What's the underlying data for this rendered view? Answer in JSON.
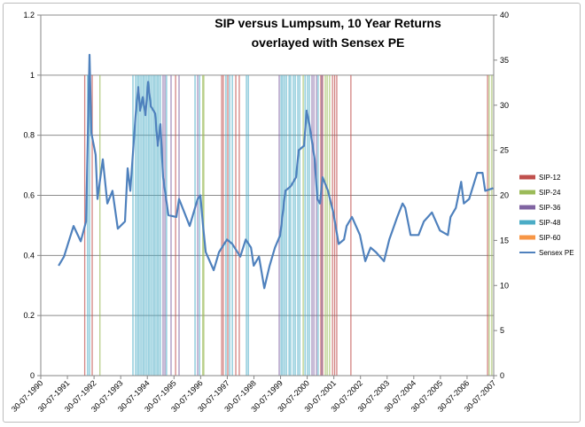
{
  "chart_data": {
    "type": "line",
    "title_line1": "SIP versus Lumpsum, 10 Year Returns",
    "title_line2": "overlayed with Sensex PE",
    "left_axis": {
      "min": 0,
      "max": 1.2,
      "ticks": [
        "0",
        "0.2",
        "0.4",
        "0.6",
        "0.8",
        "1",
        "1.2"
      ],
      "tick_values": [
        0,
        0.2,
        0.4,
        0.6,
        0.8,
        1,
        1.2
      ]
    },
    "right_axis": {
      "min": 0,
      "max": 40,
      "ticks": [
        "0",
        "5",
        "10",
        "15",
        "20",
        "25",
        "30",
        "35",
        "40"
      ],
      "tick_values": [
        0,
        5,
        10,
        15,
        20,
        25,
        30,
        35,
        40
      ]
    },
    "x_axis": {
      "min": 1990.58,
      "max": 2007.58,
      "tick_labels": [
        "30-07-1990",
        "30-07-1991",
        "30-07-1992",
        "30-07-1993",
        "30-07-1994",
        "30-07-1995",
        "30-07-1996",
        "30-07-1997",
        "30-07-1998",
        "30-07-1999",
        "30-07-2000",
        "30-07-2001",
        "30-07-2002",
        "30-07-2003",
        "30-07-2004",
        "30-07-2005",
        "30-07-2006",
        "30-07-2007"
      ]
    },
    "grid": "horizontal",
    "legend_position": "right",
    "marker_series": [
      {
        "name": "SIP-12",
        "color": "#c0504d",
        "value": 1,
        "dates": [
          1992.23,
          1992.51,
          1995.64,
          1997.37,
          1997.43,
          1997.6,
          1997.9,
          1998.03,
          2001.09,
          2001.16,
          2001.53,
          2001.61,
          2001.69,
          2002.22,
          2007.35
        ]
      },
      {
        "name": "SIP-24",
        "color": "#9bbb59",
        "value": 1,
        "dates": [
          1992.8,
          1996.66,
          1996.7,
          2000.43,
          2001.26,
          2001.33,
          2001.42,
          2007.41,
          2007.51
        ]
      },
      {
        "name": "SIP-36",
        "color": "#8064a2",
        "value": 1,
        "dates": [
          1995.17,
          1995.24,
          1995.47,
          1995.77,
          1996.47,
          1999.53,
          2000.76,
          2000.83,
          2000.93,
          2001.13
        ]
      },
      {
        "name": "SIP-48",
        "color": "#4bacc6",
        "value": 1,
        "dates": [
          1992.34,
          1992.41,
          1994.04,
          1994.14,
          1994.21,
          1994.27,
          1994.34,
          1994.41,
          1994.47,
          1994.54,
          1994.61,
          1994.67,
          1994.74,
          1994.81,
          1994.87,
          1994.94,
          1995.0,
          1995.07,
          1995.3,
          1996.37,
          1996.54,
          1997.53,
          1997.67,
          1997.77,
          1998.3,
          1998.37,
          1999.6,
          1999.66,
          1999.73,
          1999.8,
          1999.9,
          1999.96,
          2000.06,
          2000.13,
          2000.23,
          2000.3,
          2000.5,
          2000.59,
          2000.66,
          2000.99
        ]
      },
      {
        "name": "SIP-60",
        "color": "#f79646",
        "value": 1,
        "dates": []
      }
    ],
    "pe_series": {
      "name": "Sensex PE",
      "color": "#4f81bd",
      "axis": "right",
      "x": [
        1991.25,
        1991.45,
        1991.81,
        1992.08,
        1992.28,
        1992.41,
        1992.48,
        1992.64,
        1992.71,
        1992.91,
        1993.08,
        1993.27,
        1993.47,
        1993.74,
        1993.84,
        1993.94,
        1994.14,
        1994.24,
        1994.31,
        1994.41,
        1994.51,
        1994.61,
        1994.71,
        1994.87,
        1994.97,
        1995.07,
        1995.17,
        1995.37,
        1995.67,
        1995.77,
        1995.97,
        1996.17,
        1996.47,
        1996.57,
        1996.67,
        1996.77,
        1997.07,
        1997.27,
        1997.57,
        1997.77,
        1998.07,
        1998.27,
        1998.47,
        1998.57,
        1998.77,
        1998.97,
        1999.17,
        1999.37,
        1999.57,
        1999.76,
        1999.96,
        2000.16,
        2000.26,
        2000.46,
        2000.56,
        2000.66,
        2000.86,
        2000.96,
        2001.06,
        2001.16,
        2001.36,
        2001.56,
        2001.76,
        2001.96,
        2002.06,
        2002.26,
        2002.56,
        2002.76,
        2002.96,
        2003.16,
        2003.46,
        2003.66,
        2003.96,
        2004.16,
        2004.26,
        2004.46,
        2004.76,
        2004.96,
        2005.26,
        2005.56,
        2005.86,
        2005.96,
        2006.16,
        2006.36,
        2006.46,
        2006.66,
        2006.96,
        2007.16,
        2007.26,
        2007.56
      ],
      "y": [
        12.2,
        13.2,
        16.6,
        14.9,
        17.1,
        35.6,
        26.9,
        24.5,
        19.6,
        24.0,
        19.1,
        20.5,
        16.3,
        17.1,
        23.0,
        20.5,
        28.9,
        32.0,
        29.4,
        30.9,
        28.9,
        32.6,
        29.9,
        29.1,
        25.5,
        27.9,
        22.0,
        17.8,
        17.6,
        19.6,
        18.1,
        16.6,
        19.6,
        20.0,
        16.6,
        13.7,
        11.7,
        13.7,
        15.1,
        14.6,
        13.2,
        15.1,
        14.2,
        12.2,
        13.2,
        9.7,
        12.2,
        14.2,
        15.6,
        20.5,
        21.0,
        22.0,
        25.0,
        25.5,
        29.4,
        27.9,
        24.0,
        19.6,
        19.1,
        22.0,
        20.5,
        18.1,
        14.6,
        15.1,
        16.6,
        17.6,
        15.6,
        12.7,
        14.2,
        13.7,
        12.7,
        15.1,
        17.6,
        19.1,
        18.6,
        15.6,
        15.6,
        17.1,
        18.1,
        16.1,
        15.6,
        17.6,
        18.6,
        21.5,
        19.1,
        19.6,
        22.5,
        22.5,
        20.5,
        20.8
      ]
    }
  }
}
